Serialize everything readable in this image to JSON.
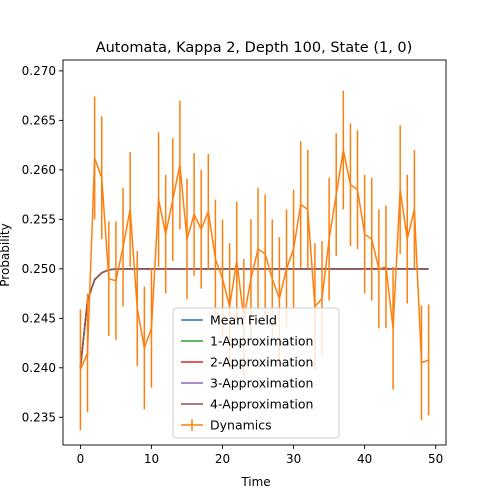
{
  "chart_data": {
    "type": "line",
    "title": "Automata, Kappa 2, Depth 100, State (1, 0)",
    "xlabel": "Time",
    "ylabel": "Probability",
    "xlim": [
      -2.45,
      51.45
    ],
    "ylim": [
      0.2322,
      0.2711
    ],
    "xticks": [
      0,
      10,
      20,
      30,
      40,
      50
    ],
    "yticks": [
      0.235,
      0.24,
      0.245,
      0.25,
      0.255,
      0.26,
      0.265,
      0.27
    ],
    "ytick_labels": [
      "0.235",
      "0.240",
      "0.245",
      "0.250",
      "0.255",
      "0.260",
      "0.265",
      "0.270"
    ],
    "grid": false,
    "legend_position": "lower-center",
    "series": [
      {
        "name": "Mean Field",
        "color": "#1f77b4",
        "kind": "line",
        "x": [
          0,
          1,
          2,
          3,
          4,
          5,
          6,
          7,
          8,
          9,
          10,
          11,
          12,
          13,
          14,
          15,
          16,
          17,
          18,
          19,
          20,
          21,
          22,
          23,
          24,
          25,
          26,
          27,
          28,
          29,
          30,
          31,
          32,
          33,
          34,
          35,
          36,
          37,
          38,
          39,
          40,
          41,
          42,
          43,
          44,
          45,
          46,
          47,
          48,
          49
        ],
        "values": [
          0.24,
          0.2468,
          0.2489,
          0.2496,
          0.2499,
          0.25,
          0.25,
          0.25,
          0.25,
          0.25,
          0.25,
          0.25,
          0.25,
          0.25,
          0.25,
          0.25,
          0.25,
          0.25,
          0.25,
          0.25,
          0.25,
          0.25,
          0.25,
          0.25,
          0.25,
          0.25,
          0.25,
          0.25,
          0.25,
          0.25,
          0.25,
          0.25,
          0.25,
          0.25,
          0.25,
          0.25,
          0.25,
          0.25,
          0.25,
          0.25,
          0.25,
          0.25,
          0.25,
          0.25,
          0.25,
          0.25,
          0.25,
          0.25,
          0.25,
          0.25
        ]
      },
      {
        "name": "1-Approximation",
        "color": "#2ca02c",
        "kind": "line",
        "x": [
          0,
          1,
          2,
          3,
          4,
          5,
          6,
          7,
          8,
          9,
          10,
          11,
          12,
          13,
          14,
          15,
          16,
          17,
          18,
          19,
          20,
          21,
          22,
          23,
          24,
          25,
          26,
          27,
          28,
          29,
          30,
          31,
          32,
          33,
          34,
          35,
          36,
          37,
          38,
          39,
          40,
          41,
          42,
          43,
          44,
          45,
          46,
          47,
          48,
          49
        ],
        "values": [
          0.24,
          0.2468,
          0.2489,
          0.2496,
          0.2499,
          0.25,
          0.25,
          0.25,
          0.25,
          0.25,
          0.25,
          0.25,
          0.25,
          0.25,
          0.25,
          0.25,
          0.25,
          0.25,
          0.25,
          0.25,
          0.25,
          0.25,
          0.25,
          0.25,
          0.25,
          0.25,
          0.25,
          0.25,
          0.25,
          0.25,
          0.25,
          0.25,
          0.25,
          0.25,
          0.25,
          0.25,
          0.25,
          0.25,
          0.25,
          0.25,
          0.25,
          0.25,
          0.25,
          0.25,
          0.25,
          0.25,
          0.25,
          0.25,
          0.25,
          0.25
        ]
      },
      {
        "name": "2-Approximation",
        "color": "#d62728",
        "kind": "line",
        "x": [
          0,
          1,
          2,
          3,
          4,
          5,
          6,
          7,
          8,
          9,
          10,
          11,
          12,
          13,
          14,
          15,
          16,
          17,
          18,
          19,
          20,
          21,
          22,
          23,
          24,
          25,
          26,
          27,
          28,
          29,
          30,
          31,
          32,
          33,
          34,
          35,
          36,
          37,
          38,
          39,
          40,
          41,
          42,
          43,
          44,
          45,
          46,
          47,
          48,
          49
        ],
        "values": [
          0.24,
          0.2468,
          0.2489,
          0.2496,
          0.2499,
          0.25,
          0.25,
          0.25,
          0.25,
          0.25,
          0.25,
          0.25,
          0.25,
          0.25,
          0.25,
          0.25,
          0.25,
          0.25,
          0.25,
          0.25,
          0.25,
          0.25,
          0.25,
          0.25,
          0.25,
          0.25,
          0.25,
          0.25,
          0.25,
          0.25,
          0.25,
          0.25,
          0.25,
          0.25,
          0.25,
          0.25,
          0.25,
          0.25,
          0.25,
          0.25,
          0.25,
          0.25,
          0.25,
          0.25,
          0.25,
          0.25,
          0.25,
          0.25,
          0.25,
          0.25
        ]
      },
      {
        "name": "3-Approximation",
        "color": "#9467bd",
        "kind": "line",
        "x": [
          0,
          1,
          2,
          3,
          4,
          5,
          6,
          7,
          8,
          9,
          10,
          11,
          12,
          13,
          14,
          15,
          16,
          17,
          18,
          19,
          20,
          21,
          22,
          23,
          24,
          25,
          26,
          27,
          28,
          29,
          30,
          31,
          32,
          33,
          34,
          35,
          36,
          37,
          38,
          39,
          40,
          41,
          42,
          43,
          44,
          45,
          46,
          47,
          48,
          49
        ],
        "values": [
          0.24,
          0.2468,
          0.2489,
          0.2496,
          0.2499,
          0.25,
          0.25,
          0.25,
          0.25,
          0.25,
          0.25,
          0.25,
          0.25,
          0.25,
          0.25,
          0.25,
          0.25,
          0.25,
          0.25,
          0.25,
          0.25,
          0.25,
          0.25,
          0.25,
          0.25,
          0.25,
          0.25,
          0.25,
          0.25,
          0.25,
          0.25,
          0.25,
          0.25,
          0.25,
          0.25,
          0.25,
          0.25,
          0.25,
          0.25,
          0.25,
          0.25,
          0.25,
          0.25,
          0.25,
          0.25,
          0.25,
          0.25,
          0.25,
          0.25,
          0.25
        ]
      },
      {
        "name": "4-Approximation",
        "color": "#8c564b",
        "kind": "line",
        "x": [
          0,
          1,
          2,
          3,
          4,
          5,
          6,
          7,
          8,
          9,
          10,
          11,
          12,
          13,
          14,
          15,
          16,
          17,
          18,
          19,
          20,
          21,
          22,
          23,
          24,
          25,
          26,
          27,
          28,
          29,
          30,
          31,
          32,
          33,
          34,
          35,
          36,
          37,
          38,
          39,
          40,
          41,
          42,
          43,
          44,
          45,
          46,
          47,
          48,
          49
        ],
        "values": [
          0.24,
          0.2468,
          0.2489,
          0.2496,
          0.2499,
          0.25,
          0.25,
          0.25,
          0.25,
          0.25,
          0.25,
          0.25,
          0.25,
          0.25,
          0.25,
          0.25,
          0.25,
          0.25,
          0.25,
          0.25,
          0.25,
          0.25,
          0.25,
          0.25,
          0.25,
          0.25,
          0.25,
          0.25,
          0.25,
          0.25,
          0.25,
          0.25,
          0.25,
          0.25,
          0.25,
          0.25,
          0.25,
          0.25,
          0.25,
          0.25,
          0.25,
          0.25,
          0.25,
          0.25,
          0.25,
          0.25,
          0.25,
          0.25,
          0.25,
          0.25
        ]
      },
      {
        "name": "Dynamics",
        "color": "#ff7f0e",
        "kind": "errorbar",
        "x": [
          0,
          1,
          2,
          3,
          4,
          5,
          6,
          7,
          8,
          9,
          10,
          11,
          12,
          13,
          14,
          15,
          16,
          17,
          18,
          19,
          20,
          21,
          22,
          23,
          24,
          25,
          26,
          27,
          28,
          29,
          30,
          31,
          32,
          33,
          34,
          35,
          36,
          37,
          38,
          39,
          40,
          41,
          42,
          43,
          44,
          45,
          46,
          47,
          48,
          49
        ],
        "values": [
          0.2398,
          0.2415,
          0.2612,
          0.2592,
          0.249,
          0.2488,
          0.2522,
          0.256,
          0.246,
          0.242,
          0.244,
          0.257,
          0.2535,
          0.257,
          0.2605,
          0.253,
          0.2555,
          0.254,
          0.2558,
          0.251,
          0.249,
          0.2462,
          0.2508,
          0.245,
          0.249,
          0.252,
          0.2515,
          0.249,
          0.247,
          0.25,
          0.252,
          0.2565,
          0.256,
          0.2462,
          0.247,
          0.253,
          0.2575,
          0.262,
          0.2585,
          0.258,
          0.2535,
          0.253,
          0.25,
          0.2502,
          0.244,
          0.258,
          0.253,
          0.256,
          0.2405,
          0.2408
        ],
        "errors": [
          0.0061,
          0.006,
          0.0062,
          0.0062,
          0.0058,
          0.006,
          0.006,
          0.0058,
          0.0058,
          0.0062,
          0.006,
          0.0068,
          0.006,
          0.0062,
          0.0065,
          0.0061,
          0.0062,
          0.006,
          0.0058,
          0.006,
          0.006,
          0.0064,
          0.006,
          0.006,
          0.006,
          0.0062,
          0.006,
          0.006,
          0.0062,
          0.006,
          0.006,
          0.0064,
          0.006,
          0.0064,
          0.0058,
          0.0062,
          0.0062,
          0.006,
          0.0062,
          0.006,
          0.006,
          0.0062,
          0.006,
          0.0062,
          0.0062,
          0.0065,
          0.0065,
          0.006,
          0.0058,
          0.0056
        ]
      }
    ]
  }
}
